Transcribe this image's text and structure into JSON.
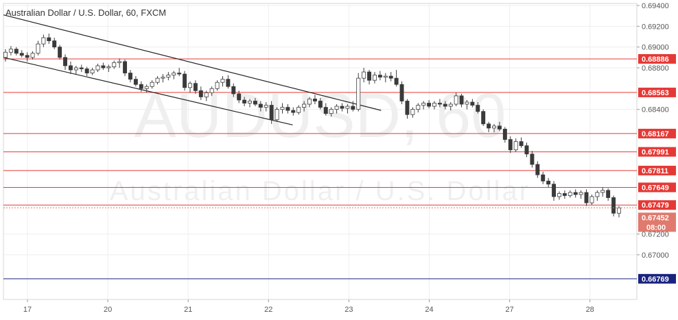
{
  "chart_data": {
    "type": "candlestick",
    "title": "Australian Dollar / U.S. Dollar, 60, FXCM",
    "watermark_symbol": "AUDUSD, 60",
    "watermark_name": "Australian Dollar / U.S. Dollar",
    "ylim": [
      0.6657,
      0.6942
    ],
    "y_ticks": [
      {
        "value": 0.694,
        "label": "0.69400"
      },
      {
        "value": 0.692,
        "label": "0.69200"
      },
      {
        "value": 0.69,
        "label": "0.69000"
      },
      {
        "value": 0.688,
        "label": "0.68800"
      },
      {
        "value": 0.684,
        "label": "0.68400"
      },
      {
        "value": 0.672,
        "label": "0.67200"
      },
      {
        "value": 0.67,
        "label": "0.67000"
      }
    ],
    "x_ticks": [
      "17",
      "20",
      "21",
      "22",
      "23",
      "24",
      "27",
      "28"
    ],
    "levels": [
      {
        "value": 0.68886,
        "label": "0.68886",
        "color": "#e53935"
      },
      {
        "value": 0.68563,
        "label": "0.68563",
        "color": "#e53935"
      },
      {
        "value": 0.68167,
        "label": "0.68167",
        "color": "#e53935"
      },
      {
        "value": 0.67991,
        "label": "0.67991",
        "color": "#e53935"
      },
      {
        "value": 0.67811,
        "label": "0.67811",
        "color": "#e53935"
      },
      {
        "value": 0.67649,
        "label": "0.67649",
        "color": "#e53935"
      },
      {
        "value": 0.67479,
        "label": "0.67479",
        "color": "#e53935"
      },
      {
        "value": 0.66769,
        "label": "0.66769",
        "color": "#1a237e"
      }
    ],
    "current_price": {
      "value": 0.67452,
      "label": "0.67452",
      "countdown": "08:00",
      "color": "#e07a6e"
    },
    "channel_lines": [
      {
        "start": {
          "day": 0,
          "price": 0.6931
        },
        "end": {
          "day": 4.7,
          "price": 0.6839
        }
      },
      {
        "start": {
          "day": 0,
          "price": 0.689
        },
        "end": {
          "day": 3.6,
          "price": 0.6825
        }
      }
    ],
    "series": [
      {
        "values": [
          [
            0.689,
            0.6898,
            0.6886,
            0.6895
          ],
          [
            0.6895,
            0.6901,
            0.6892,
            0.6898
          ],
          [
            0.6898,
            0.69,
            0.6892,
            0.6894
          ],
          [
            0.6894,
            0.6897,
            0.689,
            0.6892
          ],
          [
            0.6892,
            0.6895,
            0.6886,
            0.689
          ],
          [
            0.689,
            0.6896,
            0.6888,
            0.6894
          ],
          [
            0.6894,
            0.6906,
            0.6892,
            0.6903
          ],
          [
            0.6903,
            0.6912,
            0.69,
            0.6909
          ],
          [
            0.6909,
            0.6913,
            0.6903,
            0.6906
          ],
          [
            0.6906,
            0.6909,
            0.6898,
            0.69
          ],
          [
            0.69,
            0.6902,
            0.6888,
            0.689
          ],
          [
            0.689,
            0.6893,
            0.6878,
            0.6882
          ],
          [
            0.6882,
            0.6886,
            0.6874,
            0.6878
          ],
          [
            0.6878,
            0.6882,
            0.6874,
            0.688
          ],
          [
            0.688,
            0.6883,
            0.6876,
            0.6879
          ],
          [
            0.6879,
            0.6881,
            0.6872,
            0.6875
          ],
          [
            0.6875,
            0.688,
            0.6873,
            0.6878
          ],
          [
            0.6878,
            0.6884,
            0.6876,
            0.6882
          ],
          [
            0.6882,
            0.6885,
            0.6878,
            0.688
          ],
          [
            0.688,
            0.6883,
            0.6876,
            0.6881
          ],
          [
            0.6881,
            0.6887,
            0.6879,
            0.6885
          ],
          [
            0.6885,
            0.6889,
            0.688,
            0.6886
          ],
          [
            0.6886,
            0.6888,
            0.6872,
            0.6875
          ],
          [
            0.6875,
            0.6878,
            0.6866,
            0.6869
          ],
          [
            0.6869,
            0.6872,
            0.6862,
            0.6864
          ],
          [
            0.6864,
            0.6867,
            0.6857,
            0.686
          ],
          [
            0.686,
            0.6864,
            0.6856,
            0.6862
          ],
          [
            0.6862,
            0.6868,
            0.686,
            0.6866
          ],
          [
            0.6866,
            0.6872,
            0.6864,
            0.687
          ],
          [
            0.687,
            0.6874,
            0.6866,
            0.6871
          ],
          [
            0.6871,
            0.6876,
            0.6868,
            0.6873
          ],
          [
            0.6873,
            0.6877,
            0.6869,
            0.6875
          ],
          [
            0.6875,
            0.688,
            0.6872,
            0.6874
          ],
          [
            0.6874,
            0.6877,
            0.6858,
            0.6861
          ],
          [
            0.6861,
            0.6867,
            0.6856,
            0.6865
          ],
          [
            0.6865,
            0.6868,
            0.6855,
            0.6858
          ],
          [
            0.6858,
            0.6862,
            0.6849,
            0.6852
          ],
          [
            0.6852,
            0.6858,
            0.6848,
            0.6856
          ],
          [
            0.6856,
            0.6862,
            0.6853,
            0.686
          ],
          [
            0.686,
            0.6868,
            0.6858,
            0.6866
          ],
          [
            0.6866,
            0.6872,
            0.6862,
            0.6869
          ],
          [
            0.6869,
            0.6873,
            0.686,
            0.6862
          ],
          [
            0.6862,
            0.6865,
            0.6852,
            0.6855
          ],
          [
            0.6855,
            0.6858,
            0.6846,
            0.6849
          ],
          [
            0.6849,
            0.6852,
            0.6843,
            0.6846
          ],
          [
            0.6846,
            0.685,
            0.6842,
            0.6848
          ],
          [
            0.6848,
            0.6851,
            0.6843,
            0.6845
          ],
          [
            0.6845,
            0.6848,
            0.6838,
            0.6842
          ],
          [
            0.6842,
            0.6847,
            0.6838,
            0.6844
          ],
          [
            0.6844,
            0.6848,
            0.6826,
            0.683
          ],
          [
            0.683,
            0.6842,
            0.6828,
            0.684
          ],
          [
            0.684,
            0.6846,
            0.6836,
            0.6842
          ],
          [
            0.6842,
            0.6845,
            0.6836,
            0.6839
          ],
          [
            0.6839,
            0.6842,
            0.6834,
            0.6837
          ],
          [
            0.6837,
            0.6844,
            0.6835,
            0.6842
          ],
          [
            0.6842,
            0.6848,
            0.6838,
            0.6845
          ],
          [
            0.6845,
            0.6852,
            0.6842,
            0.685
          ],
          [
            0.685,
            0.6854,
            0.6845,
            0.6848
          ],
          [
            0.6848,
            0.6851,
            0.684,
            0.6842
          ],
          [
            0.6842,
            0.6846,
            0.6834,
            0.6836
          ],
          [
            0.6836,
            0.6842,
            0.6833,
            0.684
          ],
          [
            0.684,
            0.6845,
            0.6836,
            0.6843
          ],
          [
            0.6843,
            0.6846,
            0.6838,
            0.6841
          ],
          [
            0.6841,
            0.6845,
            0.6836,
            0.6843
          ],
          [
            0.6843,
            0.6848,
            0.6838,
            0.684
          ],
          [
            0.684,
            0.6875,
            0.6838,
            0.687
          ],
          [
            0.687,
            0.688,
            0.6866,
            0.6876
          ],
          [
            0.6876,
            0.6878,
            0.6864,
            0.6868
          ],
          [
            0.6868,
            0.6876,
            0.6865,
            0.6873
          ],
          [
            0.6873,
            0.6877,
            0.6868,
            0.6871
          ],
          [
            0.6871,
            0.6875,
            0.6866,
            0.6872
          ],
          [
            0.6872,
            0.6876,
            0.6867,
            0.687
          ],
          [
            0.687,
            0.6878,
            0.6862,
            0.6864
          ],
          [
            0.6864,
            0.6867,
            0.6845,
            0.6848
          ],
          [
            0.6848,
            0.685,
            0.6831,
            0.6835
          ],
          [
            0.6835,
            0.6842,
            0.6832,
            0.684
          ],
          [
            0.684,
            0.6846,
            0.6837,
            0.6844
          ],
          [
            0.6844,
            0.6848,
            0.684,
            0.6846
          ],
          [
            0.6846,
            0.6849,
            0.6841,
            0.6843
          ],
          [
            0.6843,
            0.6848,
            0.684,
            0.6846
          ],
          [
            0.6846,
            0.685,
            0.6842,
            0.6845
          ],
          [
            0.6845,
            0.6848,
            0.684,
            0.6843
          ],
          [
            0.6843,
            0.6847,
            0.6839,
            0.6845
          ],
          [
            0.6845,
            0.6856,
            0.6843,
            0.6853
          ],
          [
            0.6853,
            0.6855,
            0.6842,
            0.6845
          ],
          [
            0.6845,
            0.6849,
            0.684,
            0.6847
          ],
          [
            0.6847,
            0.685,
            0.6842,
            0.6844
          ],
          [
            0.6844,
            0.6847,
            0.6836,
            0.6838
          ],
          [
            0.6838,
            0.684,
            0.6824,
            0.6826
          ],
          [
            0.6826,
            0.6828,
            0.6818,
            0.6822
          ],
          [
            0.6822,
            0.6826,
            0.6818,
            0.6824
          ],
          [
            0.6824,
            0.6828,
            0.6819,
            0.6821
          ],
          [
            0.6821,
            0.6823,
            0.6808,
            0.6811
          ],
          [
            0.6811,
            0.6814,
            0.6798,
            0.6801
          ],
          [
            0.6801,
            0.6812,
            0.6799,
            0.6809
          ],
          [
            0.6809,
            0.6813,
            0.6803,
            0.6805
          ],
          [
            0.6805,
            0.6808,
            0.6794,
            0.6797
          ],
          [
            0.6797,
            0.68,
            0.6784,
            0.6787
          ],
          [
            0.6787,
            0.679,
            0.6774,
            0.6777
          ],
          [
            0.6777,
            0.678,
            0.6768,
            0.6771
          ],
          [
            0.6771,
            0.6774,
            0.6765,
            0.6768
          ],
          [
            0.6768,
            0.6771,
            0.6752,
            0.6756
          ],
          [
            0.6756,
            0.6761,
            0.6753,
            0.6759
          ],
          [
            0.6759,
            0.6762,
            0.6754,
            0.6757
          ],
          [
            0.6757,
            0.6762,
            0.6755,
            0.676
          ],
          [
            0.676,
            0.6763,
            0.6755,
            0.6758
          ],
          [
            0.6758,
            0.6762,
            0.6754,
            0.676
          ],
          [
            0.676,
            0.6763,
            0.6747,
            0.675
          ],
          [
            0.675,
            0.6758,
            0.6748,
            0.6756
          ],
          [
            0.6756,
            0.6762,
            0.6752,
            0.676
          ],
          [
            0.676,
            0.6765,
            0.6756,
            0.6762
          ],
          [
            0.6762,
            0.6764,
            0.6752,
            0.6755
          ],
          [
            0.6755,
            0.6757,
            0.6737,
            0.674
          ],
          [
            0.674,
            0.6747,
            0.6736,
            0.6745
          ]
        ]
      }
    ]
  }
}
